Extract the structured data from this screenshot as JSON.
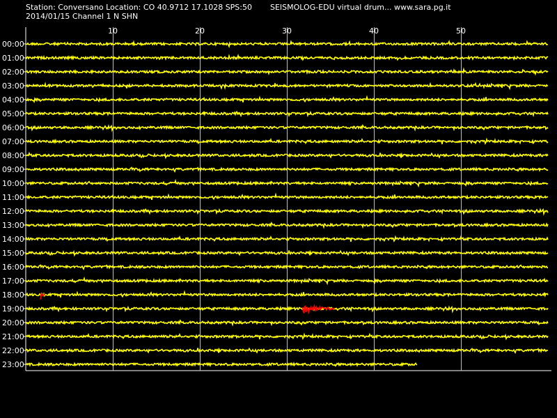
{
  "header": {
    "station_line": "Station: Conversano Location: CO 40.9712 17.1028 SPS:50",
    "title": "SEISMOLOG-EDU virtual drum... www.sara.pg.it",
    "date_channel": "2014/01/15  Channel 1 N SHN"
  },
  "drum": {
    "minute_ticks": [
      "10",
      "20",
      "30",
      "40",
      "50"
    ],
    "hour_labels": [
      "00:00",
      "01:00",
      "02:00",
      "03:00",
      "04:00",
      "05:00",
      "06:00",
      "07:00",
      "08:00",
      "09:00",
      "10:00",
      "11:00",
      "12:00",
      "13:00",
      "14:00",
      "15:00",
      "16:00",
      "17:00",
      "18:00",
      "19:00",
      "20:00",
      "21:00",
      "22:00",
      "23:00"
    ],
    "trace_color": "#ffff00",
    "event_color": "#ff0000",
    "grid_color": "#c0c0c0",
    "last_trace_end_minute": 45,
    "events": [
      {
        "hour": "18:00",
        "start_minute": 1.7,
        "end_minute": 2.2
      },
      {
        "hour": "19:00",
        "start_minute": 31.8,
        "end_minute": 35.5
      }
    ]
  }
}
